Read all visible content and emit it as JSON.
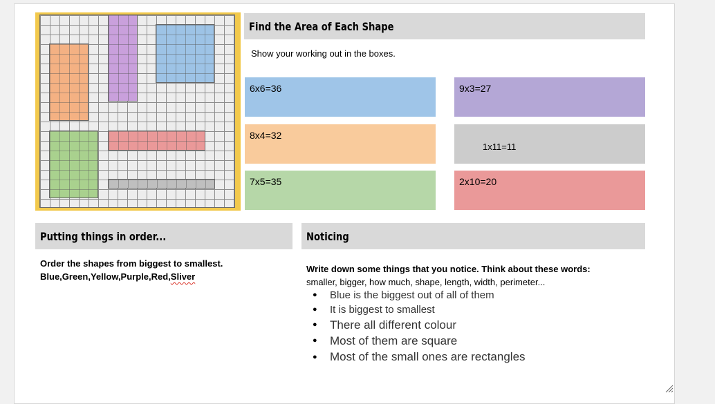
{
  "worksheet": {
    "title": "Find the Area of Each Shape",
    "instruction": "Show your working out in the boxes.",
    "shapes": [
      {
        "name": "shape-orange",
        "color": "#f4b183"
      },
      {
        "name": "shape-purple",
        "color": "#c9a0dc"
      },
      {
        "name": "shape-blue",
        "color": "#9dc3e6"
      },
      {
        "name": "shape-green",
        "color": "#a9d18e"
      },
      {
        "name": "shape-red",
        "color": "#ea9999"
      },
      {
        "name": "shape-grey",
        "color": "#bfbfbf"
      }
    ],
    "answers": [
      {
        "text": "6x6=36",
        "color": "#9fc5e8"
      },
      {
        "text": "9x3=27",
        "color": "#b4a7d6"
      },
      {
        "text": "8x4=32",
        "color": "#f9cb9c"
      },
      {
        "text": "1x11=11",
        "color": "#cccccc"
      },
      {
        "text": "7x5=35",
        "color": "#b6d7a8"
      },
      {
        "text": "2x10=20",
        "color": "#ea9999"
      }
    ]
  },
  "order": {
    "heading": "Putting things in order...",
    "instruction": "Order the shapes from biggest to smallest.",
    "answer_main": "Blue,Green,Yellow,Purple,Red,",
    "answer_last": "Sliver"
  },
  "noticing": {
    "heading": "Noticing",
    "prompt": "Write down some things that you notice. Think about these words:",
    "words": "smaller, bigger, how much, shape, length, width, perimeter...",
    "items": [
      "Blue is the biggest out of all of them",
      "It is biggest to smallest",
      "There all different colour",
      "Most of them are square",
      "Most of the small ones are rectangles"
    ]
  }
}
